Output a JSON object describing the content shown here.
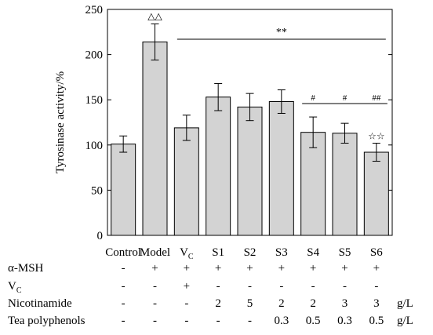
{
  "chart_data": {
    "type": "bar",
    "categories": [
      "Control",
      "Model",
      "V",
      "S1",
      "S2",
      "S3",
      "S4",
      "S5",
      "S6"
    ],
    "category_subscripts": [
      "",
      "",
      "C",
      "",
      "",
      "",
      "",
      "",
      ""
    ],
    "values": [
      101,
      214,
      119,
      153,
      142,
      148,
      114,
      113,
      92
    ],
    "errors": [
      9,
      20,
      14,
      15,
      15,
      13,
      17,
      11,
      10
    ],
    "ylabel": "Tyrosinase activity/%",
    "ylim": [
      0,
      250
    ],
    "yticks": [
      0,
      50,
      100,
      150,
      200,
      250
    ],
    "bar_color": "#d3d3d3",
    "annotations": {
      "model_mark": "△△",
      "significance_line": "**",
      "s4": "#",
      "s5": "#",
      "s6_hash": "##",
      "s6_star": "☆☆"
    },
    "treatment_table": {
      "rows": [
        {
          "label": "α-MSH",
          "label_sub": "",
          "values": [
            "-",
            "+",
            "+",
            "+",
            "+",
            "+",
            "+",
            "+",
            "+"
          ],
          "unit": ""
        },
        {
          "label": "V",
          "label_sub": "C",
          "values": [
            "-",
            "-",
            "+",
            "-",
            "-",
            "-",
            "-",
            "-",
            "-"
          ],
          "unit": ""
        },
        {
          "label": "Nicotinamide",
          "label_sub": "",
          "values": [
            "-",
            "-",
            "-",
            "2",
            "5",
            "2",
            "2",
            "3",
            "3"
          ],
          "unit": "g/L"
        },
        {
          "label": "Tea polyphenols",
          "label_sub": "",
          "values": [
            "-",
            "-",
            "-",
            "-",
            "-",
            "0.3",
            "0.5",
            "0.3",
            "0.5"
          ],
          "unit": "g/L"
        }
      ]
    }
  }
}
